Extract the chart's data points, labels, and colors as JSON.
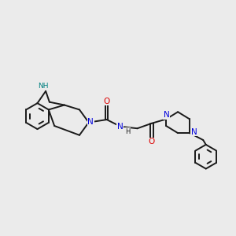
{
  "bg_color": "#ebebeb",
  "bond_color": "#1a1a1a",
  "N_color": "#0000dd",
  "O_color": "#dd0000",
  "NH_color": "#008080",
  "lw": 1.4,
  "figsize": [
    3.0,
    3.0
  ],
  "dpi": 100,
  "xlim": [
    0,
    10
  ],
  "ylim": [
    2,
    8
  ]
}
